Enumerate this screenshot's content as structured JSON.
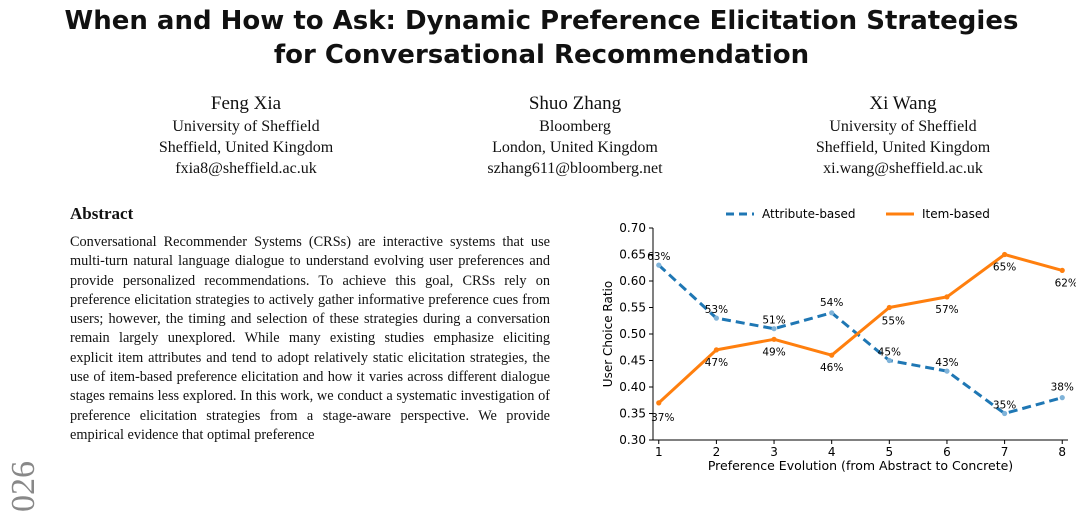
{
  "title_line1": "When and How to Ask: Dynamic Preference Elicitation Strategies",
  "title_line2": "for Conversational Recommendation",
  "authors": [
    {
      "name": "Feng Xia",
      "affiliation": "University of Sheffield",
      "location": "Sheffield, United Kingdom",
      "email": "fxia8@sheffield.ac.uk"
    },
    {
      "name": "Shuo Zhang",
      "affiliation": "Bloomberg",
      "location": "London, United Kingdom",
      "email": "szhang611@bloomberg.net"
    },
    {
      "name": "Xi Wang",
      "affiliation": "University of Sheffield",
      "location": "Sheffield, United Kingdom",
      "email": "xi.wang@sheffield.ac.uk"
    }
  ],
  "abstract_heading": "Abstract",
  "abstract_text": "Conversational Recommender Systems (CRSs) are interactive systems that use multi-turn natural language dialogue to understand evolving user preferences and provide personalized recommendations. To achieve this goal, CRSs rely on preference elicitation strategies to actively gather informative preference cues from users; however, the timing and selection of these strategies during a conversation remain largely unexplored. While many existing studies emphasize eliciting explicit item attributes and tend to adopt relatively static elicitation strategies, the use of item-based preference elicitation and how it varies across different dialogue stages remains less explored. In this work, we conduct a systematic investigation of preference elicitation strategies from a stage-aware perspective. We provide empirical evidence that optimal preference",
  "line_number": "026",
  "chart_data": {
    "type": "line",
    "x": [
      1,
      2,
      3,
      4,
      5,
      6,
      7,
      8
    ],
    "xlabel": "Preference Evolution (from Abstract to Concrete)",
    "ylabel": "User Choice Ratio",
    "ylim": [
      0.3,
      0.7
    ],
    "yticks": [
      "0.30",
      "0.35",
      "0.40",
      "0.45",
      "0.50",
      "0.55",
      "0.60",
      "0.65",
      "0.70"
    ],
    "xticks": [
      "1",
      "2",
      "3",
      "4",
      "5",
      "6",
      "7",
      "8"
    ],
    "legend_position": "top",
    "grid": false,
    "series": [
      {
        "name": "Attribute-based",
        "color": "#1f77b4",
        "style": "dashed",
        "values": [
          0.63,
          0.53,
          0.51,
          0.54,
          0.45,
          0.43,
          0.35,
          0.38
        ],
        "labels": [
          "63%",
          "53%",
          "51%",
          "54%",
          "45%",
          "43%",
          "35%",
          "38%"
        ]
      },
      {
        "name": "Item-based",
        "color": "#ff7f0e",
        "style": "solid",
        "values": [
          0.37,
          0.47,
          0.49,
          0.46,
          0.55,
          0.57,
          0.65,
          0.62
        ],
        "labels": [
          "37%",
          "47%",
          "49%",
          "46%",
          "55%",
          "57%",
          "65%",
          "62%"
        ]
      }
    ]
  }
}
